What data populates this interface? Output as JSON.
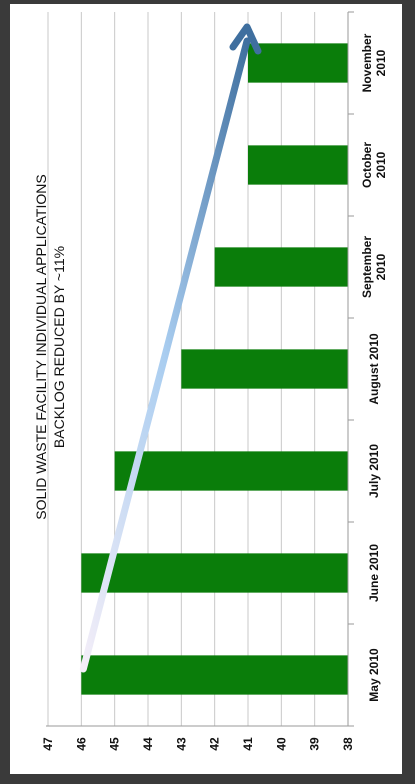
{
  "chart_data": {
    "type": "bar",
    "orientation": "rotated",
    "title": "SOLID WASTE FACILITY INDIVIDUAL APPLICATIONS",
    "subtitle": "BACKLOG REDUCED BY ~11%",
    "categories": [
      [
        "May 2010"
      ],
      [
        "June 2010"
      ],
      [
        "July 2010"
      ],
      [
        "August 2010"
      ],
      [
        "September",
        "2010"
      ],
      [
        "October",
        "2010"
      ],
      [
        "November",
        "2010"
      ]
    ],
    "values": [
      46,
      46,
      45,
      43,
      42,
      41,
      41
    ],
    "ylim": [
      38,
      47
    ],
    "yticks": [
      47,
      46,
      45,
      44,
      43,
      42,
      41,
      40,
      39,
      38
    ],
    "grid": true,
    "bar_color": "#0a7d0a",
    "arrow": {
      "from_category": 0,
      "from_value": 46,
      "to_category": 6,
      "to_value": 41,
      "colors": [
        "#f4eef8",
        "#a9cdf0",
        "#3f6f9f"
      ]
    }
  }
}
